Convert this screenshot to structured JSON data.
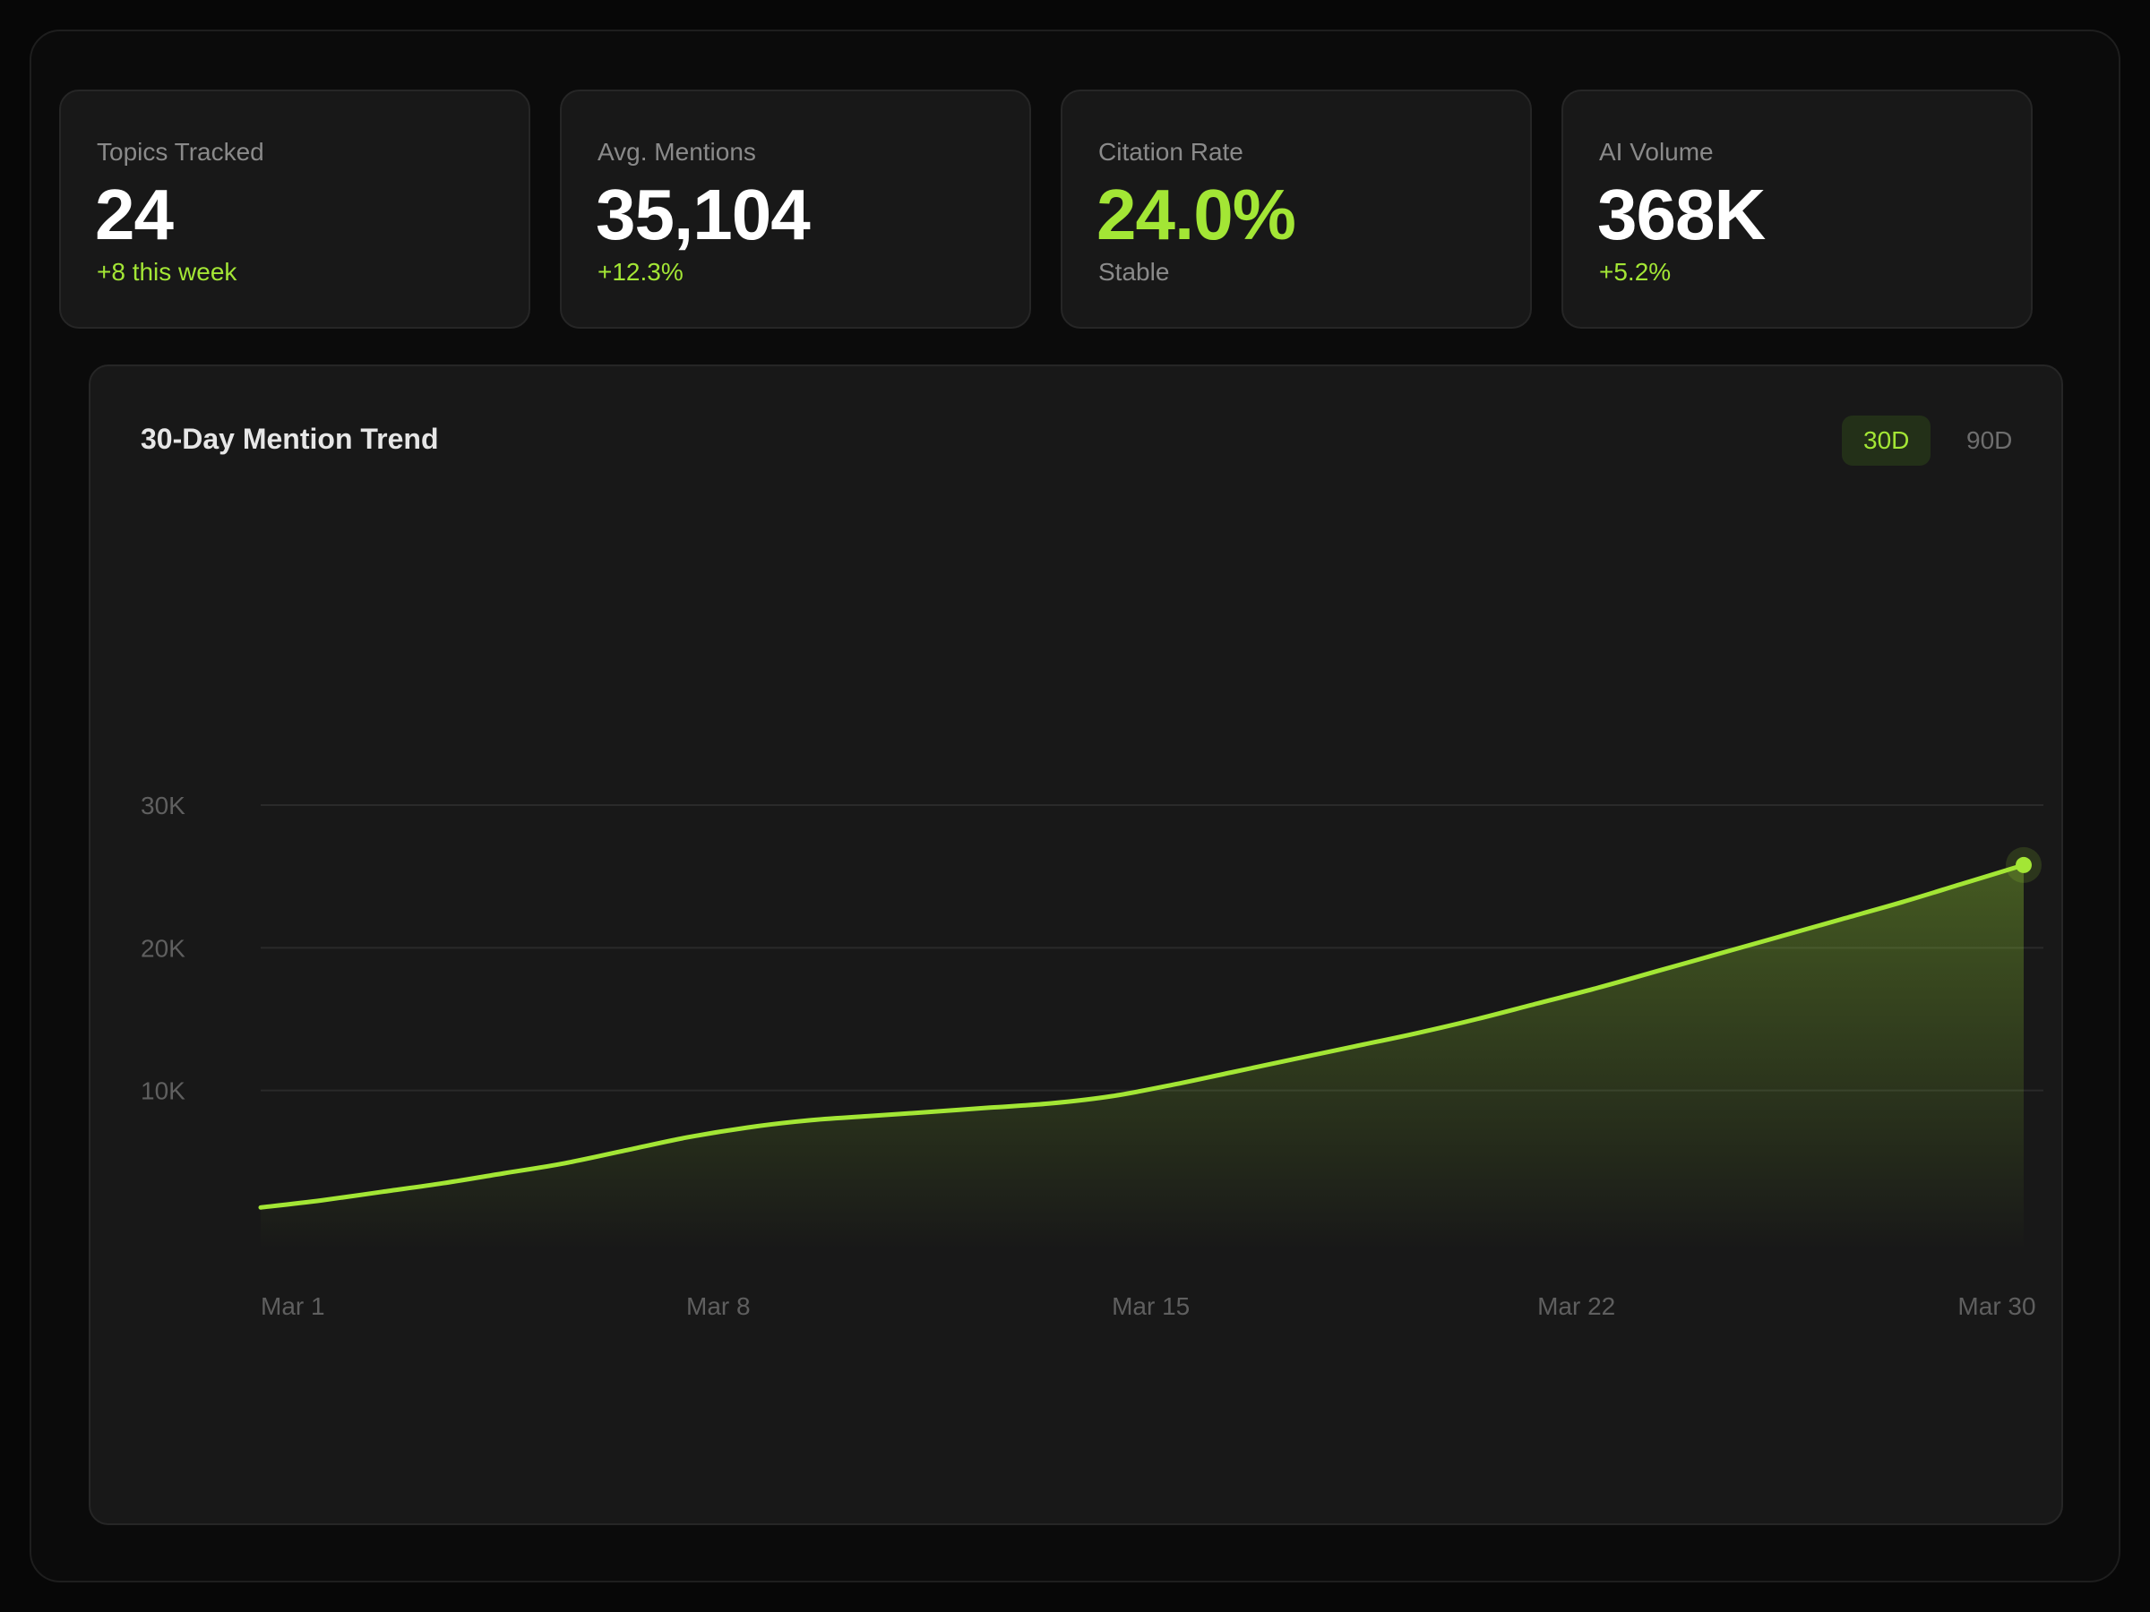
{
  "stats": [
    {
      "label": "Topics Tracked",
      "value": "24",
      "sub": "+8 this week",
      "value_accent": false,
      "sub_muted": false
    },
    {
      "label": "Avg. Mentions",
      "value": "35,104",
      "sub": "+12.3%",
      "value_accent": false,
      "sub_muted": false
    },
    {
      "label": "Citation Rate",
      "value": "24.0%",
      "sub": "Stable",
      "value_accent": true,
      "sub_muted": true
    },
    {
      "label": "AI Volume",
      "value": "368K",
      "sub": "+5.2%",
      "value_accent": false,
      "sub_muted": false
    }
  ],
  "chart": {
    "title": "30-Day Mention Trend",
    "range_options": [
      {
        "label": "30D",
        "active": true
      },
      {
        "label": "90D",
        "active": false
      }
    ]
  },
  "colors": {
    "accent": "#a3e635",
    "grid": "#2a2a2a",
    "tick": "#5f5f5f"
  },
  "chart_data": {
    "type": "area",
    "x": [
      "2024-03-01",
      "2024-03-02",
      "2024-03-03",
      "2024-03-04",
      "2024-03-05",
      "2024-03-06",
      "2024-03-07",
      "2024-03-08",
      "2024-03-09",
      "2024-03-10",
      "2024-03-11",
      "2024-03-12",
      "2024-03-13",
      "2024-03-14",
      "2024-03-15",
      "2024-03-16",
      "2024-03-17",
      "2024-03-18",
      "2024-03-19",
      "2024-03-20",
      "2024-03-21",
      "2024-03-22",
      "2024-03-23",
      "2024-03-24",
      "2024-03-25",
      "2024-03-26",
      "2024-03-27",
      "2024-03-28",
      "2024-03-29",
      "2024-03-30"
    ],
    "x_tick_labels": [
      {
        "x": "2024-03-01",
        "label": "Mar 1"
      },
      {
        "x": "2024-03-08",
        "label": "Mar 8"
      },
      {
        "x": "2024-03-15",
        "label": "Mar 15"
      },
      {
        "x": "2024-03-22",
        "label": "Mar 22"
      },
      {
        "x": "2024-03-30",
        "label": "Mar 30"
      }
    ],
    "series": [
      {
        "values": [
          1800,
          2300,
          2900,
          3500,
          4200,
          4900,
          5800,
          6700,
          7400,
          7900,
          8200,
          8500,
          8800,
          9100,
          9600,
          10400,
          11300,
          12200,
          13100,
          14000,
          15000,
          16100,
          17200,
          18400,
          19600,
          20800,
          22000,
          23200,
          24500,
          25800
        ]
      }
    ],
    "ylim": [
      0,
      30000
    ],
    "y_ticks": [
      {
        "value": 10000,
        "label": "10K"
      },
      {
        "value": 20000,
        "label": "20K"
      },
      {
        "value": 30000,
        "label": "30K"
      }
    ],
    "grid": true,
    "title": "30-Day Mention Trend",
    "xlabel": "",
    "ylabel": ""
  }
}
